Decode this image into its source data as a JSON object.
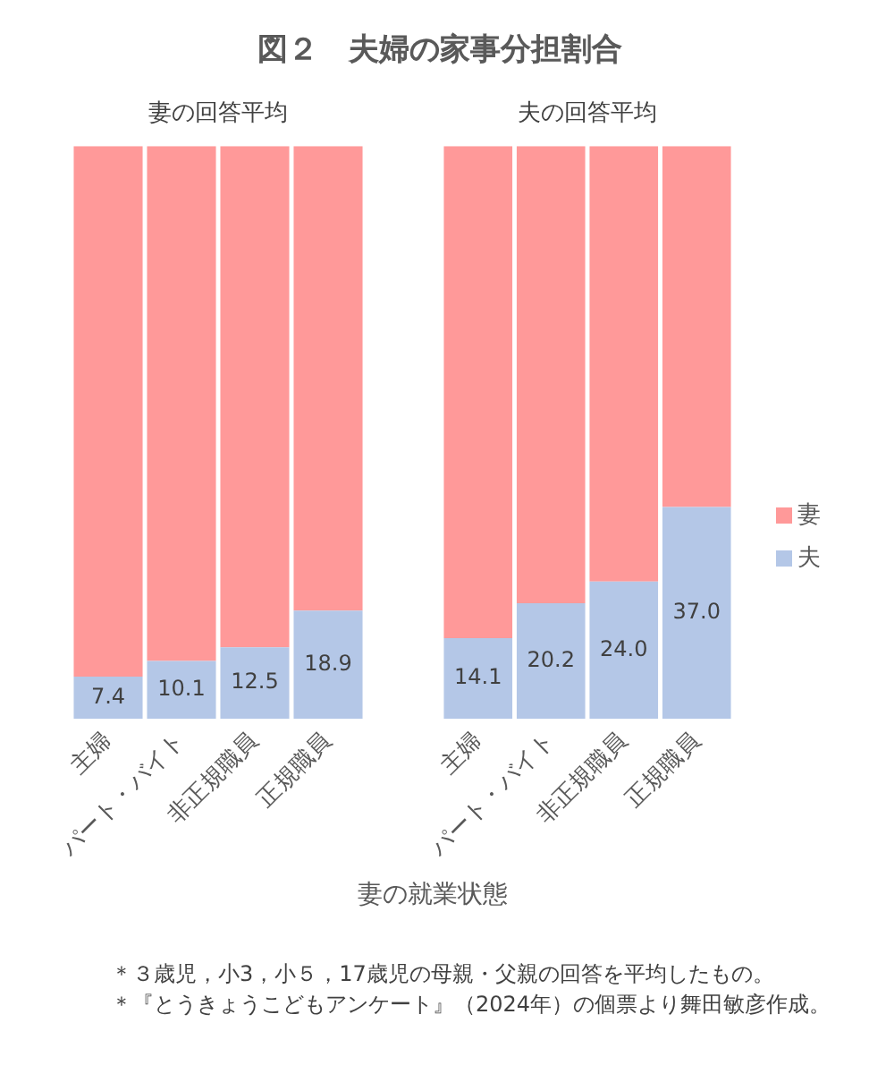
{
  "chart_data": [
    {
      "type": "bar",
      "title": "図２　夫婦の家事分担割合",
      "subtitle": "妻の回答平均",
      "xlabel": "妻の就業状態",
      "categories": [
        "主婦",
        "パート・バイト",
        "非正規職員",
        "正規職員"
      ],
      "stacked": true,
      "series": [
        {
          "color": "#b4c7e7",
          "values": [
            7.4,
            10.1,
            12.5,
            18.9
          ],
          "value_labels": [
            "7.4",
            "10.1",
            "12.5",
            "18.9"
          ]
        },
        {
          "color": "#ff9999",
          "values": [
            92.6,
            89.9,
            87.5,
            81.1
          ]
        }
      ],
      "ylim": [
        0,
        100
      ],
      "tick_labels": "x",
      "annotations": [
        "＊３歳児，小3，小５，17歳児の母親・父親の回答を平均したもの。",
        "＊『とうきょうこどもアンケート』（2024年）の個票より舞田敏彦作成。"
      ]
    },
    {
      "type": "bar",
      "subtitle": "夫の回答平均",
      "categories": [
        "主婦",
        "パート・バイト",
        "非正規職員",
        "正規職員"
      ],
      "stacked": true,
      "series": [
        {
          "name": "夫",
          "color": "#b4c7e7",
          "values": [
            14.1,
            20.2,
            24.0,
            37.0
          ],
          "value_labels": [
            "14.1",
            "20.2",
            "24.0",
            "37.0"
          ]
        },
        {
          "name": "妻",
          "color": "#ff9999",
          "values": [
            85.9,
            79.8,
            76.0,
            63.0
          ]
        }
      ],
      "ylim": [
        0,
        100
      ],
      "tick_labels": "x",
      "legend": "right"
    }
  ]
}
